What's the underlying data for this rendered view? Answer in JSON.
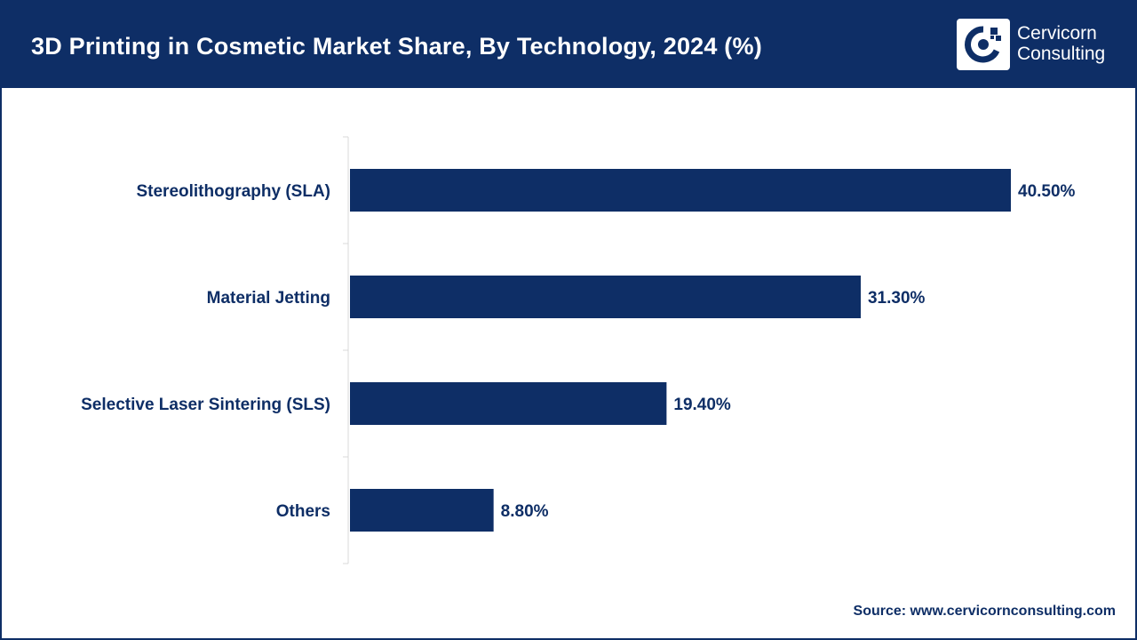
{
  "header": {
    "title": "3D Printing in Cosmetic Market Share, By Technology, 2024 (%)"
  },
  "logo": {
    "line1": "Cervicorn",
    "line2": "Consulting",
    "icon": "cervicorn-logo-icon"
  },
  "colors": {
    "header_bg": "#0e2e66",
    "bar": "#0e2e66",
    "label": "#0e2e66"
  },
  "chart_data": {
    "type": "bar",
    "orientation": "horizontal",
    "categories": [
      "Stereolithography (SLA)",
      "Material Jetting",
      "Selective Laser Sintering (SLS)",
      "Others"
    ],
    "values": [
      40.5,
      31.3,
      19.4,
      8.8
    ],
    "value_labels": [
      "40.50%",
      "31.30%",
      "19.40%",
      "8.80%"
    ],
    "title": "3D Printing in Cosmetic Market Share, By Technology, 2024 (%)",
    "xlabel": "",
    "ylabel": "",
    "grid": false,
    "legend": "none"
  },
  "footer": {
    "source": "Source: www.cervicornconsulting.com"
  }
}
